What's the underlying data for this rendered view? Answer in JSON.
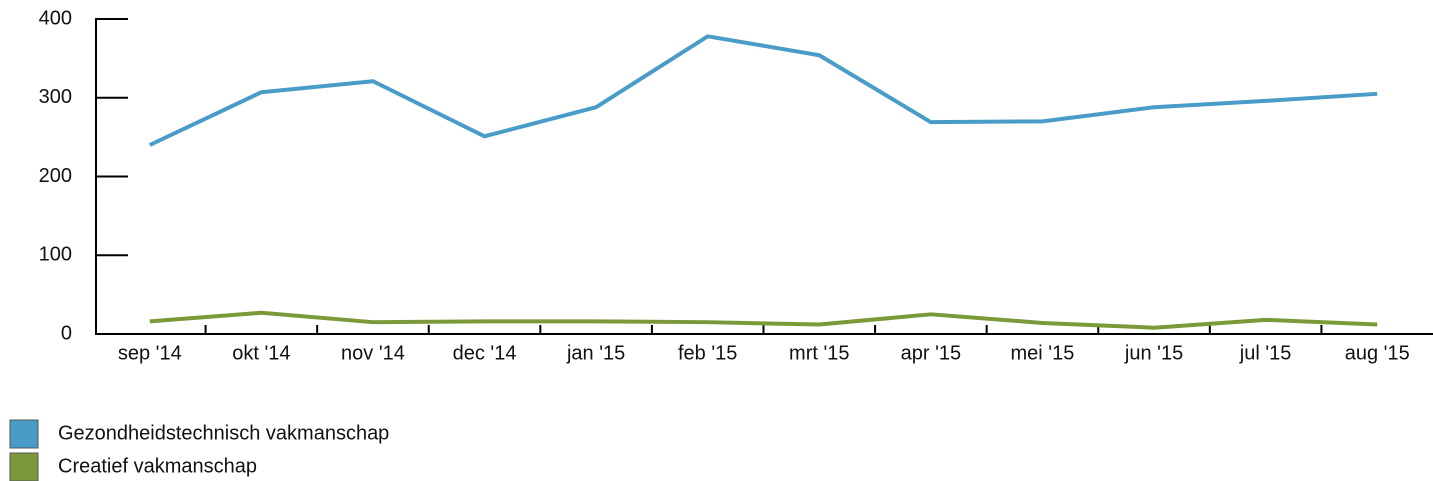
{
  "chart_data": {
    "type": "line",
    "categories": [
      "sep '14",
      "okt '14",
      "nov '14",
      "dec '14",
      "jan '15",
      "feb '15",
      "mrt '15",
      "apr '15",
      "mei '15",
      "jun '15",
      "jul '15",
      "aug '15"
    ],
    "series": [
      {
        "name": "Gezondheidstechnisch vakmanschap",
        "color": "#4a9cc8",
        "values": [
          240,
          307,
          321,
          251,
          288,
          378,
          354,
          269,
          270,
          288,
          296,
          305
        ]
      },
      {
        "name": "Creatief vakmanschap",
        "color": "#7a9a3a",
        "values": [
          16,
          27,
          15,
          16,
          16,
          15,
          12,
          25,
          14,
          8,
          18,
          12
        ]
      }
    ],
    "ylim": [
      0,
      400
    ],
    "yticks": [
      0,
      100,
      200,
      300,
      400
    ],
    "legend": "bottom-left"
  }
}
